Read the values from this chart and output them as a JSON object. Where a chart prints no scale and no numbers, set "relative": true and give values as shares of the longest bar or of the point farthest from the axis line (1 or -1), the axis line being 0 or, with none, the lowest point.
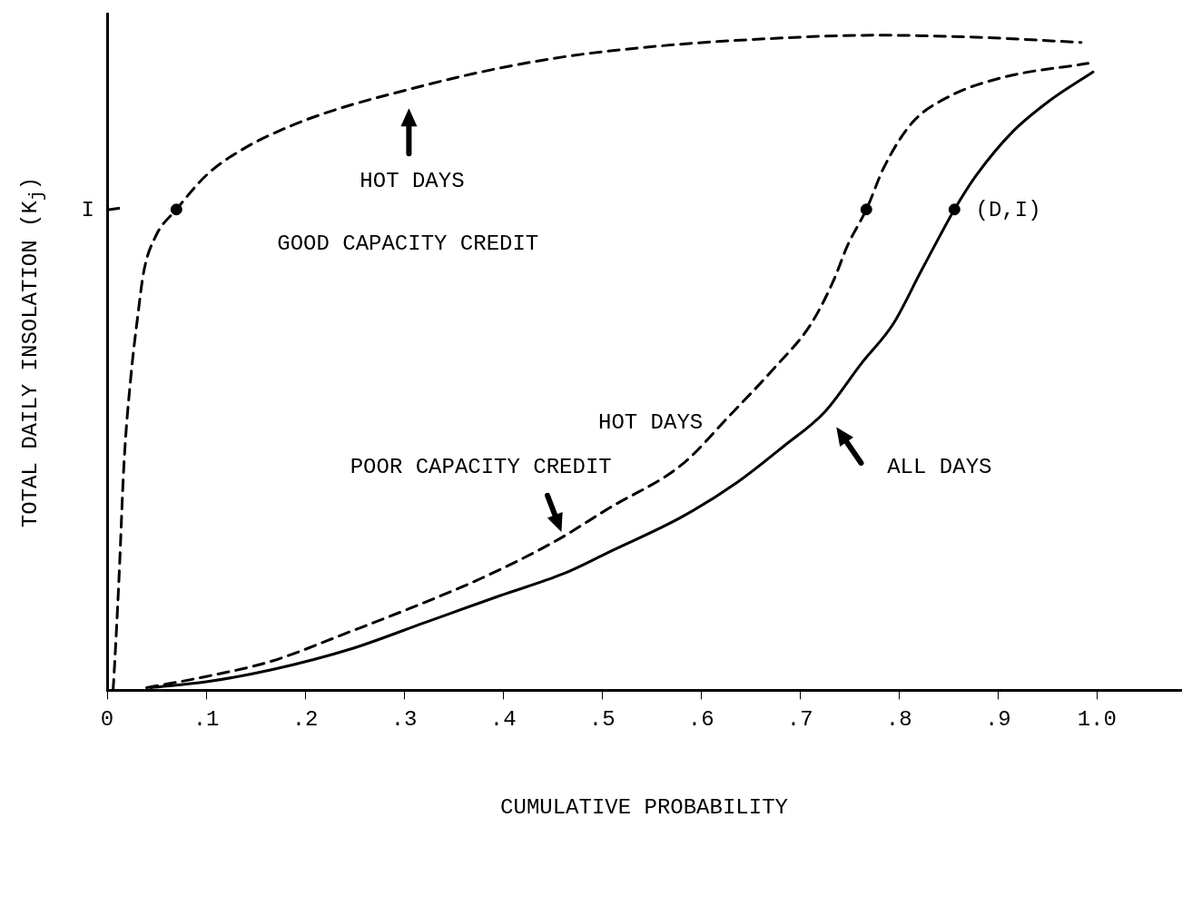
{
  "chart_data": {
    "type": "line",
    "relative": true,
    "xlabel": "CUMULATIVE PROBABILITY",
    "ylabel": "TOTAL DAILY INSOLATION (K$_{j}$)",
    "xlim": [
      0,
      1.085
    ],
    "xticks": [
      {
        "value": 0,
        "label": "0"
      },
      {
        "value": 0.1,
        "label": ".1"
      },
      {
        "value": 0.2,
        "label": ".2"
      },
      {
        "value": 0.3,
        "label": ".3"
      },
      {
        "value": 0.4,
        "label": ".4"
      },
      {
        "value": 0.5,
        "label": ".5"
      },
      {
        "value": 0.6,
        "label": ".6"
      },
      {
        "value": 0.7,
        "label": ".7"
      },
      {
        "value": 0.8,
        "label": ".8"
      },
      {
        "value": 0.9,
        "label": ".9"
      },
      {
        "value": 1.0,
        "label": "1.0"
      }
    ],
    "grid": false,
    "legend": false,
    "series": [
      {
        "color": "#000000",
        "line_style": "dashed",
        "marker": "none",
        "x": [
          0.006,
          0.007,
          0.012,
          0.017,
          0.024,
          0.031,
          0.037,
          0.049,
          0.07,
          0.1,
          0.137,
          0.183,
          0.23,
          0.304,
          0.378,
          0.461,
          0.554,
          0.646,
          0.776,
          0.878,
          0.984
        ],
        "values": [
          0,
          0.024,
          0.171,
          0.345,
          0.479,
          0.572,
          0.639,
          0.693,
          0.734,
          0.786,
          0.826,
          0.86,
          0.886,
          0.917,
          0.944,
          0.967,
          0.983,
          0.993,
          1.0,
          0.997,
          0.989
        ]
      },
      {
        "color": "#000000",
        "line_style": "dashed",
        "marker": "none",
        "x": [
          0.04,
          0.1,
          0.165,
          0.248,
          0.304,
          0.378,
          0.452,
          0.507,
          0.581,
          0.628,
          0.674,
          0.711,
          0.734,
          0.748,
          0.767,
          0.785,
          0.813,
          0.85,
          0.906,
          0.991
        ],
        "values": [
          0.004,
          0.021,
          0.044,
          0.091,
          0.124,
          0.171,
          0.227,
          0.278,
          0.345,
          0.418,
          0.492,
          0.559,
          0.626,
          0.679,
          0.734,
          0.799,
          0.866,
          0.906,
          0.936,
          0.957
        ]
      },
      {
        "color": "#000000",
        "line_style": "solid",
        "marker": "none",
        "x": [
          0.044,
          0.1,
          0.165,
          0.248,
          0.322,
          0.396,
          0.461,
          0.507,
          0.581,
          0.637,
          0.683,
          0.725,
          0.762,
          0.794,
          0.822,
          0.841,
          0.856,
          0.878,
          0.915,
          0.952,
          0.996
        ],
        "values": [
          0.004,
          0.013,
          0.031,
          0.064,
          0.104,
          0.144,
          0.178,
          0.211,
          0.265,
          0.318,
          0.372,
          0.425,
          0.499,
          0.559,
          0.639,
          0.693,
          0.734,
          0.786,
          0.853,
          0.9,
          0.944
        ]
      },
      {
        "type": "scatter",
        "color": "#000000",
        "marker": "circle",
        "x": [
          0.07,
          0.767,
          0.856
        ],
        "values": [
          0.734,
          0.734,
          0.734
        ]
      }
    ],
    "annotations": [
      "HOT DAYS",
      "GOOD CAPACITY CREDIT",
      "HOT DAYS",
      "POOR CAPACITY CREDIT",
      "ALL DAYS",
      "(D,I)",
      "I"
    ]
  }
}
